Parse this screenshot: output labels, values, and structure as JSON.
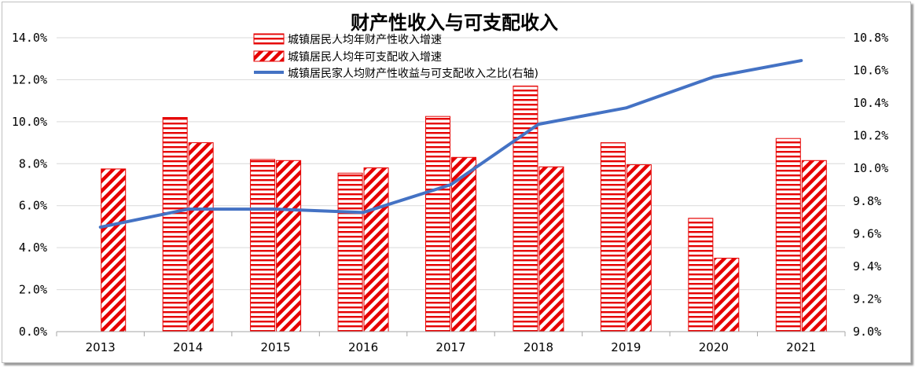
{
  "chart_data": {
    "type": "bar",
    "title": "财产性收入与可支配收入",
    "categories": [
      "2013",
      "2014",
      "2015",
      "2016",
      "2017",
      "2018",
      "2019",
      "2020",
      "2021"
    ],
    "series": [
      {
        "name": "城镇居民人均年财产性收入增速",
        "type": "bar",
        "axis": "left",
        "pattern": "horizontal-stripes",
        "values": [
          null,
          10.2,
          8.2,
          7.55,
          10.25,
          11.7,
          9.0,
          5.4,
          9.2
        ]
      },
      {
        "name": "城镇居民人均年可支配收入增速",
        "type": "bar",
        "axis": "left",
        "pattern": "diagonal-stripes",
        "values": [
          7.75,
          9.0,
          8.15,
          7.8,
          8.3,
          7.85,
          7.95,
          3.5,
          8.15
        ]
      },
      {
        "name": "城镇居民家人均财产性收益与可支配收入之比(右轴)",
        "type": "line",
        "axis": "right",
        "values": [
          9.64,
          9.75,
          9.75,
          9.73,
          9.9,
          10.27,
          10.37,
          10.56,
          10.66
        ]
      }
    ],
    "y_left": {
      "min": 0,
      "max": 14,
      "step": 2,
      "tick_labels": [
        "0.0%",
        "2.0%",
        "4.0%",
        "6.0%",
        "8.0%",
        "10.0%",
        "12.0%",
        "14.0%"
      ]
    },
    "y_right": {
      "min": 9.0,
      "max": 10.8,
      "step": 0.2,
      "tick_labels": [
        "9.0%",
        "9.2%",
        "9.4%",
        "9.6%",
        "9.8%",
        "10.0%",
        "10.2%",
        "10.4%",
        "10.6%",
        "10.8%"
      ]
    },
    "grid": true,
    "legend_position": "top-center",
    "colors": {
      "bar": "#e60000",
      "line": "#4472c4",
      "grid": "#d9d9d9",
      "axis": "#a6a6a6"
    }
  }
}
